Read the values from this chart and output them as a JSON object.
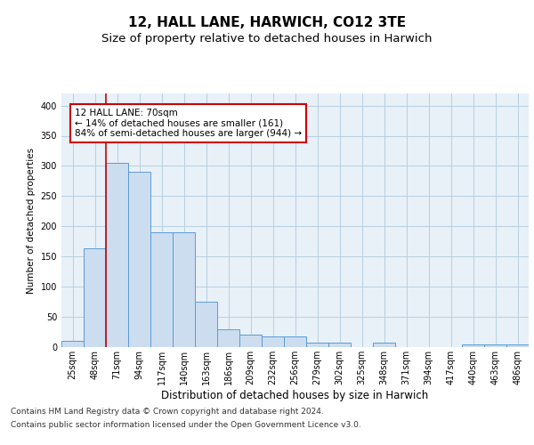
{
  "title1": "12, HALL LANE, HARWICH, CO12 3TE",
  "title2": "Size of property relative to detached houses in Harwich",
  "xlabel": "Distribution of detached houses by size in Harwich",
  "ylabel": "Number of detached properties",
  "categories": [
    "25sqm",
    "48sqm",
    "71sqm",
    "94sqm",
    "117sqm",
    "140sqm",
    "163sqm",
    "186sqm",
    "209sqm",
    "232sqm",
    "256sqm",
    "279sqm",
    "302sqm",
    "325sqm",
    "348sqm",
    "371sqm",
    "394sqm",
    "417sqm",
    "440sqm",
    "463sqm",
    "486sqm"
  ],
  "values": [
    10,
    163,
    305,
    290,
    190,
    190,
    75,
    30,
    20,
    18,
    18,
    8,
    8,
    0,
    8,
    0,
    0,
    0,
    5,
    5,
    5
  ],
  "bar_color": "#ccddf0",
  "bar_edge_color": "#5b9bd5",
  "grid_color": "#b8cfe0",
  "background_color": "#e8f0f8",
  "annotation_text": "12 HALL LANE: 70sqm\n← 14% of detached houses are smaller (161)\n84% of semi-detached houses are larger (944) →",
  "vline_color": "#cc0000",
  "box_color": "#cc0000",
  "footer1": "Contains HM Land Registry data © Crown copyright and database right 2024.",
  "footer2": "Contains public sector information licensed under the Open Government Licence v3.0.",
  "ylim": [
    0,
    420
  ],
  "yticks": [
    0,
    50,
    100,
    150,
    200,
    250,
    300,
    350,
    400
  ],
  "title1_fontsize": 11,
  "title2_fontsize": 9.5,
  "xlabel_fontsize": 8.5,
  "ylabel_fontsize": 7.5,
  "tick_fontsize": 7,
  "annotation_fontsize": 7.5,
  "footer_fontsize": 6.5
}
